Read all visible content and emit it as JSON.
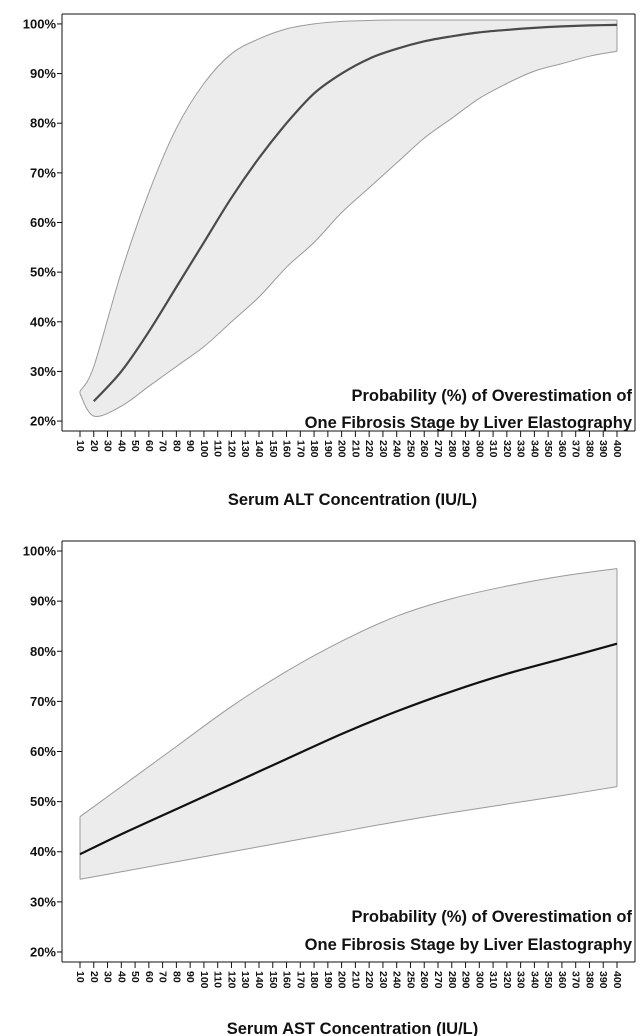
{
  "chart_data": [
    {
      "type": "area",
      "xlabel": "Serum ALT Concentration (IU/L)",
      "ylabel": "",
      "annotation": [
        "Probability (%) of Overestimation of",
        "One Fibrosis Stage by Liver Elastography"
      ],
      "xticks": [
        "10",
        "20",
        "30",
        "40",
        "50",
        "60",
        "70",
        "80",
        "90",
        "100",
        "110",
        "120",
        "130",
        "140",
        "150",
        "160",
        "170",
        "180",
        "190",
        "200",
        "210",
        "220",
        "230",
        "240",
        "250",
        "260",
        "270",
        "280",
        "290",
        "300",
        "310",
        "320",
        "330",
        "340",
        "350",
        "360",
        "370",
        "380",
        "390",
        "400"
      ],
      "xlim": [
        10,
        400
      ],
      "yticks": [
        "20%",
        "30%",
        "40%",
        "50%",
        "60%",
        "70%",
        "80%",
        "90%",
        "100%"
      ],
      "ylim": [
        18,
        102
      ],
      "grid": false,
      "series": [
        {
          "x": [
            10,
            20,
            40,
            60,
            80,
            100,
            120,
            140,
            160,
            180,
            200,
            220,
            240,
            260,
            280,
            300,
            320,
            340,
            360,
            380,
            400
          ],
          "estimate": [
            null,
            24,
            30,
            38,
            47,
            56,
            65,
            73,
            80,
            86,
            90,
            93,
            95,
            96.5,
            97.5,
            98.3,
            98.8,
            99.2,
            99.5,
            99.7,
            99.8
          ],
          "lower": [
            25.5,
            21,
            23,
            27,
            31,
            35,
            40,
            45,
            51,
            56,
            62,
            67,
            72,
            77,
            81,
            85,
            88,
            90.5,
            92,
            93.5,
            94.5
          ],
          "upper": [
            26,
            31,
            50,
            66,
            79,
            88,
            94,
            97,
            99,
            100,
            100.5,
            100.7,
            100.8,
            100.8,
            100.8,
            100.8,
            100.8,
            100.8,
            100.8,
            100.8,
            100.8
          ]
        }
      ],
      "colors": {
        "line": "#4a4a4a",
        "band": "#ececec",
        "band_edge": "#9a9a9a"
      }
    },
    {
      "type": "area",
      "xlabel": "Serum AST Concentration (IU/L)",
      "ylabel": "",
      "annotation": [
        "Probability (%) of Overestimation of",
        "One Fibrosis Stage by Liver Elastography"
      ],
      "xticks": [
        "10",
        "20",
        "30",
        "40",
        "50",
        "60",
        "70",
        "80",
        "90",
        "100",
        "110",
        "120",
        "130",
        "140",
        "150",
        "160",
        "170",
        "180",
        "190",
        "200",
        "210",
        "220",
        "230",
        "240",
        "250",
        "260",
        "270",
        "280",
        "290",
        "300",
        "310",
        "320",
        "330",
        "340",
        "350",
        "360",
        "370",
        "380",
        "390",
        "400"
      ],
      "xlim": [
        10,
        400
      ],
      "yticks": [
        "20%",
        "30%",
        "40%",
        "50%",
        "60%",
        "70%",
        "80%",
        "90%",
        "100%"
      ],
      "ylim": [
        18,
        102
      ],
      "grid": false,
      "series": [
        {
          "x": [
            10,
            40,
            80,
            120,
            160,
            200,
            240,
            280,
            320,
            360,
            400
          ],
          "estimate": [
            39.5,
            43.5,
            48.5,
            53.5,
            58.5,
            63.5,
            68,
            72,
            75.5,
            78.5,
            81.5
          ],
          "lower": [
            34.5,
            36,
            38,
            40,
            42,
            44,
            46,
            47.8,
            49.5,
            51.2,
            53
          ],
          "upper": [
            47,
            53,
            61,
            69,
            76,
            82,
            87,
            90.5,
            93,
            95,
            96.5
          ]
        }
      ],
      "colors": {
        "line": "#111111",
        "band": "#ececec",
        "band_edge": "#9a9a9a"
      }
    }
  ]
}
